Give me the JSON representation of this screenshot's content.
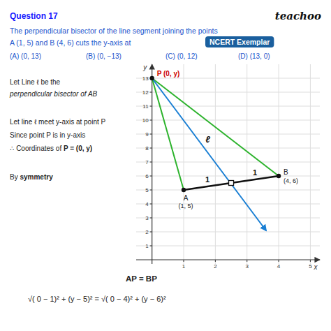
{
  "chart_data": {
    "type": "scatter",
    "title": "Question 17",
    "brand": "teachoo",
    "question": [
      "The perpendicular bisector of the line segment joining the points",
      "A (1, 5) and B (4, 6) cuts the y-axis at"
    ],
    "badge": "NCERT Exemplar",
    "options": [
      "(A) (0, 13)",
      "(B) (0, −13)",
      "(C) (0, 12)",
      "(D) (13, 0)"
    ],
    "notes": [
      [
        "Let Line ℓ be the"
      ],
      [
        "perpendicular  bisector of AB"
      ],
      [
        "Let line ℓ meet y-axis at point P"
      ],
      [
        "Since point P is in y-axis"
      ],
      [
        "∴ Coordinates of ",
        "P = (0, y)"
      ],
      [
        "By ",
        "symmetry"
      ]
    ],
    "result": [
      "AP = BP",
      "√( 0 − 1)² + (y − 5)² = √( 0 − 4)² + (y − 6)²"
    ],
    "x_label": "x",
    "y_label": "y",
    "xlim": [
      -0.5,
      5.3
    ],
    "ylim": [
      -0.3,
      14.0
    ],
    "xticks": [
      1,
      2,
      3,
      4,
      5
    ],
    "yticks": [
      1,
      2,
      3,
      4,
      5,
      6,
      7,
      8,
      9,
      10,
      11,
      12,
      13
    ],
    "grid": true,
    "points": [
      {
        "label": "A",
        "coords": "(1, 5)",
        "x": 1,
        "y": 5,
        "color": "#222222"
      },
      {
        "label": "B",
        "coords": "(4, 6)",
        "x": 4,
        "y": 6,
        "color": "#222222"
      },
      {
        "label": "P (0, y)",
        "x": 0,
        "y": 13,
        "color": "#cc0000"
      }
    ],
    "segments": [
      {
        "from": [
          1,
          5
        ],
        "to": [
          4,
          6
        ],
        "color": "#111111",
        "line_style": "solid"
      },
      {
        "from": [
          0,
          13
        ],
        "to": [
          1,
          5
        ],
        "color": "#2db32d",
        "line_style": "solid"
      },
      {
        "from": [
          0,
          13
        ],
        "to": [
          4,
          6
        ],
        "color": "#2db32d",
        "line_style": "solid"
      },
      {
        "from": [
          0,
          13
        ],
        "to": [
          3.6,
          2.1
        ],
        "color": "#1a7fd4",
        "line_style": "arrow"
      }
    ],
    "midpoint": [
      2.5,
      5.5
    ],
    "half_labels": [
      "1",
      "1"
    ],
    "line_label": "ℓ"
  }
}
